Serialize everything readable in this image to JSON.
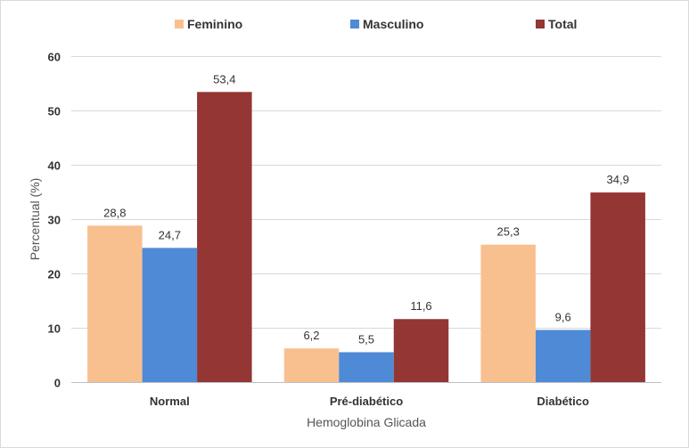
{
  "chart_data": {
    "type": "bar",
    "title": "",
    "xlabel": "Hemoglobina Glicada",
    "ylabel": "Percentual (%)",
    "ylim": [
      0,
      60
    ],
    "yticks": [
      "0",
      "10",
      "20",
      "30",
      "40",
      "50",
      "60"
    ],
    "categories": [
      "Normal",
      "Pré-diabético",
      "Diabético"
    ],
    "legend_position": "top",
    "grid": true,
    "series": [
      {
        "name": "Feminino",
        "color": "#F9C08F",
        "values": [
          28.8,
          6.2,
          25.3
        ],
        "labels": [
          "28,8",
          "6,2",
          "25,3"
        ]
      },
      {
        "name": "Masculino",
        "color": "#4F8AD6",
        "values": [
          24.7,
          5.5,
          9.6
        ],
        "labels": [
          "24,7",
          "5,5",
          "9,6"
        ]
      },
      {
        "name": "Total",
        "color": "#943634",
        "values": [
          53.4,
          11.6,
          34.9
        ],
        "labels": [
          "53,4",
          "11,6",
          "34,9"
        ]
      }
    ]
  }
}
